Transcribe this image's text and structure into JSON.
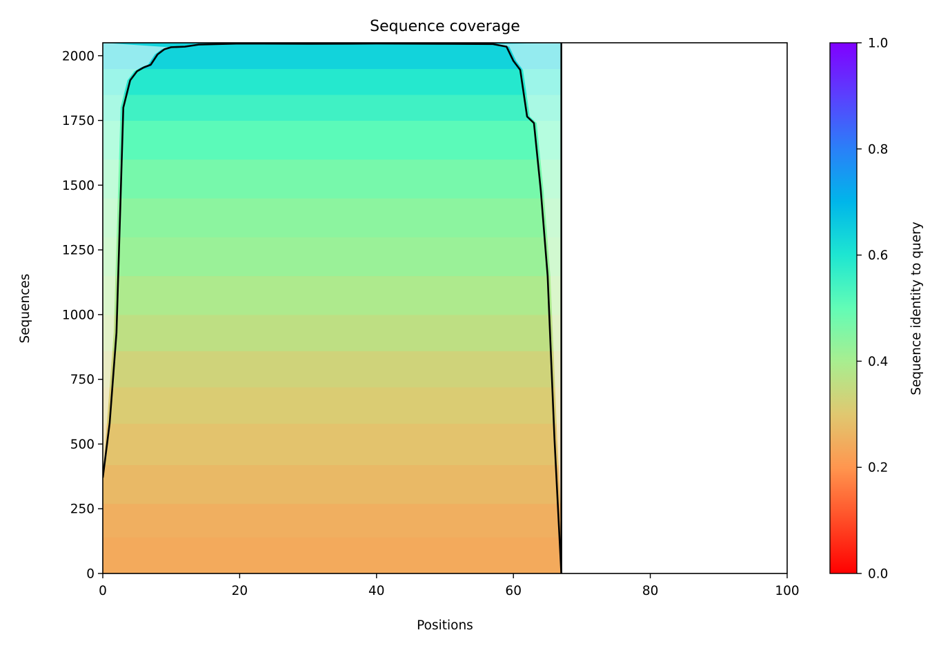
{
  "chart_data": {
    "type": "heatmap",
    "title": "Sequence coverage",
    "xlabel": "Positions",
    "ylabel": "Sequences",
    "xlim": [
      0,
      100
    ],
    "ylim": [
      0,
      2050
    ],
    "x_ticks": [
      0,
      20,
      40,
      60,
      80,
      100
    ],
    "y_ticks": [
      0,
      250,
      500,
      750,
      1000,
      1250,
      1500,
      1750,
      2000
    ],
    "alignment_length": 67,
    "num_sequences": 2050,
    "colorbar": {
      "label": "Sequence identity to query",
      "colormap": "rainbow_r",
      "range": [
        0,
        1
      ],
      "ticks": [
        0.0,
        0.2,
        0.4,
        0.6,
        0.8,
        1.0
      ],
      "tick_labels": [
        "0.0",
        "0.2",
        "0.4",
        "0.6",
        "0.8",
        "1.0"
      ]
    },
    "identity_bands": [
      {
        "from": 0,
        "to": 140,
        "identity": 0.24
      },
      {
        "from": 140,
        "to": 270,
        "identity": 0.25
      },
      {
        "from": 270,
        "to": 420,
        "identity": 0.27
      },
      {
        "from": 420,
        "to": 580,
        "identity": 0.29
      },
      {
        "from": 580,
        "to": 720,
        "identity": 0.31
      },
      {
        "from": 720,
        "to": 860,
        "identity": 0.33
      },
      {
        "from": 860,
        "to": 1000,
        "identity": 0.36
      },
      {
        "from": 1000,
        "to": 1150,
        "identity": 0.39
      },
      {
        "from": 1150,
        "to": 1300,
        "identity": 0.42
      },
      {
        "from": 1300,
        "to": 1450,
        "identity": 0.44
      },
      {
        "from": 1450,
        "to": 1600,
        "identity": 0.47
      },
      {
        "from": 1600,
        "to": 1750,
        "identity": 0.51
      },
      {
        "from": 1750,
        "to": 1850,
        "identity": 0.55
      },
      {
        "from": 1850,
        "to": 1950,
        "identity": 0.59
      },
      {
        "from": 1950,
        "to": 2050,
        "identity": 0.64
      }
    ],
    "coverage": {
      "name": "coverage",
      "color": "#000000",
      "x": [
        0,
        1,
        2,
        3,
        4,
        5,
        6,
        7,
        8,
        9,
        10,
        12,
        14,
        20,
        30,
        40,
        50,
        57,
        59,
        60,
        61,
        62,
        63,
        64,
        65,
        66,
        67
      ],
      "y": [
        370,
        580,
        930,
        1800,
        1905,
        1940,
        1955,
        1965,
        2005,
        2025,
        2033,
        2035,
        2043,
        2047,
        2046,
        2047,
        2046,
        2045,
        2035,
        1980,
        1945,
        1765,
        1740,
        1480,
        1150,
        520,
        0
      ]
    }
  }
}
